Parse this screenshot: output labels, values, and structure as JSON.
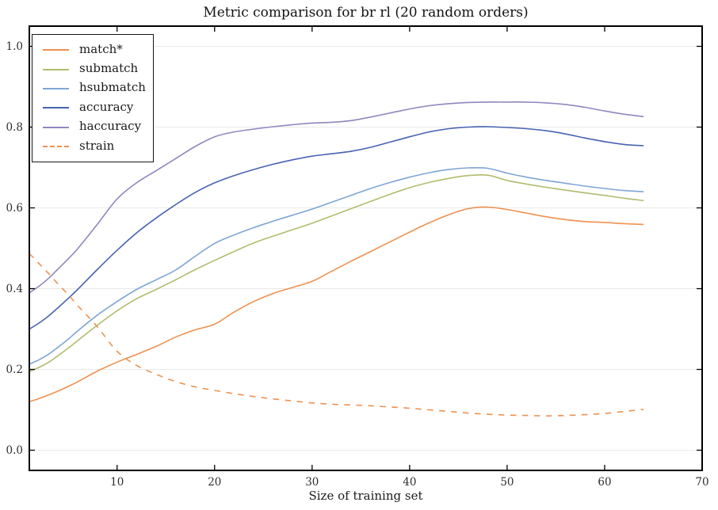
{
  "chart_data": {
    "type": "line",
    "title": "Metric comparison for br rl (20 random orders)",
    "xlabel": "Size of training set",
    "ylabel": "",
    "xlim": [
      1,
      70
    ],
    "ylim": [
      -0.05,
      1.05
    ],
    "x_ticks": [
      10,
      20,
      30,
      40,
      50,
      60,
      70
    ],
    "x_tick_labels": [
      "10",
      "20",
      "30",
      "40",
      "50",
      "60",
      "70"
    ],
    "y_ticks": [
      0.0,
      0.2,
      0.4,
      0.6,
      0.8,
      1.0
    ],
    "y_tick_labels": [
      "0.0",
      "0.2",
      "0.4",
      "0.6",
      "0.8",
      "1.0"
    ],
    "grid": "horizontal-only",
    "legend_position": "upper left",
    "x": [
      1,
      2,
      3,
      4,
      5,
      6,
      8,
      10,
      12,
      14,
      16,
      18,
      20,
      22,
      24,
      26,
      28,
      30,
      32,
      34,
      36,
      38,
      40,
      42,
      44,
      46,
      48,
      50,
      52,
      54,
      56,
      58,
      60,
      62,
      64
    ],
    "series": [
      {
        "name": "match*",
        "color": "#EE9150",
        "dash": "solid",
        "values": [
          0.12,
          0.128,
          0.137,
          0.147,
          0.158,
          0.17,
          0.196,
          0.218,
          0.237,
          0.257,
          0.28,
          0.298,
          0.312,
          0.342,
          0.368,
          0.388,
          0.403,
          0.418,
          0.443,
          0.468,
          0.492,
          0.516,
          0.54,
          0.563,
          0.583,
          0.598,
          0.602,
          0.596,
          0.587,
          0.578,
          0.571,
          0.566,
          0.564,
          0.561,
          0.559
        ]
      },
      {
        "name": "submatch",
        "color": "#B1BC6C",
        "dash": "solid",
        "values": [
          0.195,
          0.205,
          0.218,
          0.235,
          0.253,
          0.272,
          0.31,
          0.345,
          0.375,
          0.398,
          0.422,
          0.447,
          0.47,
          0.492,
          0.513,
          0.53,
          0.546,
          0.562,
          0.58,
          0.598,
          0.616,
          0.634,
          0.65,
          0.663,
          0.673,
          0.68,
          0.681,
          0.668,
          0.659,
          0.651,
          0.644,
          0.637,
          0.631,
          0.624,
          0.618
        ]
      },
      {
        "name": "hsubmatch",
        "color": "#7EA6D4",
        "dash": "solid",
        "values": [
          0.213,
          0.224,
          0.238,
          0.256,
          0.275,
          0.296,
          0.335,
          0.368,
          0.398,
          0.422,
          0.446,
          0.48,
          0.512,
          0.533,
          0.551,
          0.567,
          0.582,
          0.597,
          0.614,
          0.631,
          0.648,
          0.663,
          0.676,
          0.687,
          0.695,
          0.699,
          0.698,
          0.686,
          0.676,
          0.668,
          0.661,
          0.654,
          0.648,
          0.643,
          0.64
        ]
      },
      {
        "name": "accuracy",
        "color": "#4763B2",
        "dash": "solid",
        "values": [
          0.3,
          0.315,
          0.333,
          0.354,
          0.376,
          0.399,
          0.448,
          0.495,
          0.538,
          0.575,
          0.608,
          0.638,
          0.662,
          0.68,
          0.695,
          0.708,
          0.719,
          0.728,
          0.734,
          0.74,
          0.75,
          0.763,
          0.776,
          0.788,
          0.796,
          0.8,
          0.801,
          0.799,
          0.796,
          0.791,
          0.783,
          0.773,
          0.764,
          0.757,
          0.754
        ]
      },
      {
        "name": "haccuracy",
        "color": "#9186BE",
        "dash": "solid",
        "values": [
          0.39,
          0.406,
          0.426,
          0.45,
          0.474,
          0.5,
          0.56,
          0.622,
          0.662,
          0.692,
          0.722,
          0.752,
          0.776,
          0.788,
          0.795,
          0.801,
          0.806,
          0.81,
          0.812,
          0.816,
          0.825,
          0.835,
          0.845,
          0.853,
          0.858,
          0.861,
          0.862,
          0.862,
          0.862,
          0.86,
          0.856,
          0.849,
          0.84,
          0.832,
          0.826
        ]
      },
      {
        "name": "strain",
        "color": "#EE9150",
        "dash": "dashed",
        "values": [
          0.487,
          0.462,
          0.437,
          0.41,
          0.385,
          0.357,
          0.305,
          0.245,
          0.21,
          0.188,
          0.17,
          0.157,
          0.148,
          0.14,
          0.133,
          0.127,
          0.122,
          0.117,
          0.114,
          0.112,
          0.11,
          0.107,
          0.104,
          0.1,
          0.096,
          0.092,
          0.089,
          0.087,
          0.086,
          0.085,
          0.086,
          0.088,
          0.091,
          0.096,
          0.101
        ]
      }
    ],
    "colors": {
      "spine": "#000000",
      "grid": "#e9e9e9",
      "tick_label": "#2e2e2e",
      "background": "#ffffff"
    }
  }
}
